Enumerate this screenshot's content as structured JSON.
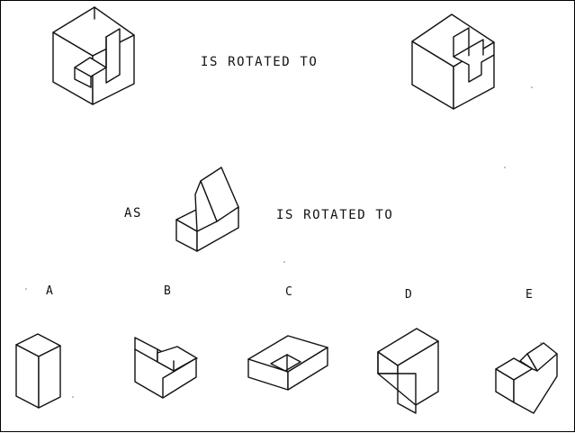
{
  "row1": {
    "text": "IS ROTATED TO"
  },
  "row2": {
    "as_text": "AS",
    "text": "IS ROTATED TO"
  },
  "options": [
    "A",
    "B",
    "C",
    "D",
    "E"
  ]
}
